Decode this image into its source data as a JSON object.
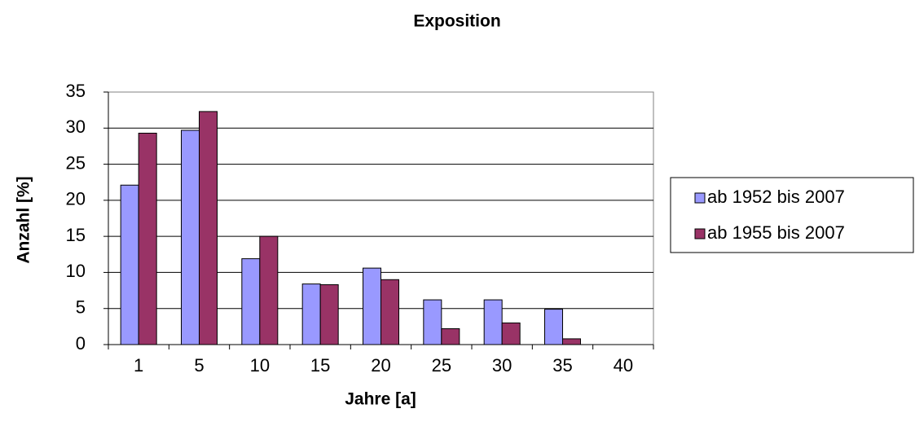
{
  "chart_data": {
    "type": "bar",
    "title": "Exposition",
    "x_label": "Jahre [a]",
    "y_label": "Anzahl [%]",
    "categories": [
      "1",
      "5",
      "10",
      "15",
      "20",
      "25",
      "30",
      "35",
      "40"
    ],
    "series": [
      {
        "name": "ab 1952 bis 2007",
        "color": "#9999ff",
        "values": [
          22.1,
          29.7,
          11.9,
          8.4,
          10.6,
          6.2,
          6.2,
          4.9,
          0
        ]
      },
      {
        "name": "ab 1955 bis 2007",
        "color": "#993366",
        "values": [
          29.3,
          32.3,
          15.0,
          8.3,
          9.0,
          2.2,
          3.0,
          0.8,
          0
        ]
      }
    ],
    "ylim": [
      0,
      35
    ],
    "yticks": [
      0,
      5,
      10,
      15,
      20,
      25,
      30,
      35
    ],
    "grid": true,
    "legend": "right"
  }
}
